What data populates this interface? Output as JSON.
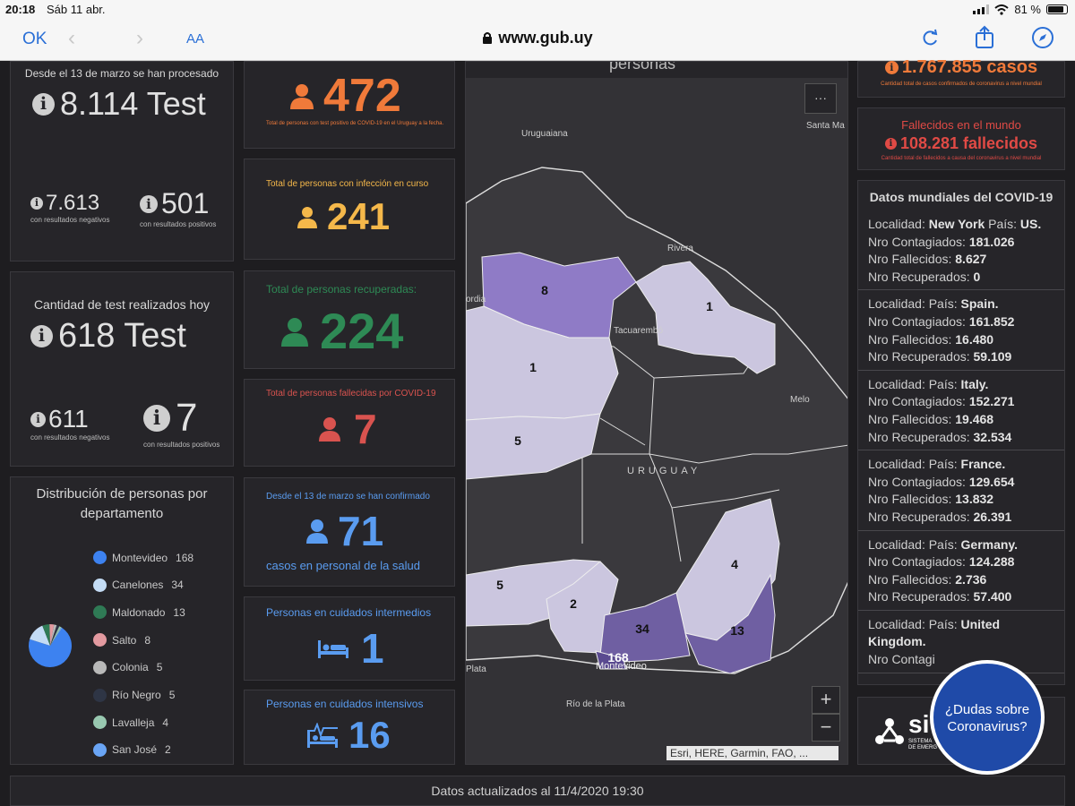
{
  "status_bar": {
    "time": "20:18",
    "date": "Sáb 11 abr.",
    "battery": "81 %"
  },
  "browser": {
    "ok_label": "OK",
    "text_size_label": "AA",
    "url": "www.gub.uy"
  },
  "tests_total": {
    "header": "Desde el 13 de marzo se han procesado",
    "value": "8.114 Test",
    "negatives_value": "7.613",
    "negatives_label": "con resultados negativos",
    "positives_value": "501",
    "positives_label": "con resultados positivos"
  },
  "tests_today": {
    "header": "Cantidad de test realizados hoy",
    "value": "618 Test",
    "negatives_value": "611",
    "negatives_label": "con resultados negativos",
    "positives_value": "7",
    "positives_label": "con resultados positivos"
  },
  "distribution": {
    "title": "Distribución de personas por departamento",
    "items": [
      {
        "name": "Montevideo",
        "value": "168",
        "color": "#3d82f0"
      },
      {
        "name": "Canelones",
        "value": "34",
        "color": "#c4dcf5"
      },
      {
        "name": "Maldonado",
        "value": "13",
        "color": "#2f7a55"
      },
      {
        "name": "Salto",
        "value": "8",
        "color": "#e39aa0"
      },
      {
        "name": "Colonia",
        "value": "5",
        "color": "#b9b9b9"
      },
      {
        "name": "Río Negro",
        "value": "5",
        "color": "#2e3545"
      },
      {
        "name": "Lavalleja",
        "value": "4",
        "color": "#98c8b0"
      },
      {
        "name": "San José",
        "value": "2",
        "color": "#6aa5f5"
      }
    ]
  },
  "kpi": {
    "positives": {
      "value": "472",
      "label": "Total de personas con test positivo de COVID-19 en el Uruguay a la fecha.",
      "color": "#f07a3a"
    },
    "active": {
      "label": "Total de personas con infección en curso",
      "value": "241",
      "color": "#f5b84a"
    },
    "recovered": {
      "label": "Total de personas recuperadas:",
      "value": "224",
      "color": "#2e8a55"
    },
    "deceased": {
      "label": "Total de personas fallecidas por COVID-19",
      "value": "7",
      "color": "#d9534f"
    },
    "health_staff": {
      "label": "Desde el 13 de marzo se han confirmado",
      "value": "71",
      "sublabel": "casos en personal de la salud",
      "color": "#5a9cf0"
    },
    "intermediate_care": {
      "label": "Personas en cuidados intermedios",
      "value": "1",
      "color": "#5a9cf0"
    },
    "intensive_care": {
      "label": "Personas en cuidados intensivos",
      "value": "16",
      "color": "#5a9cf0"
    }
  },
  "map": {
    "title_partial": "personas",
    "places": [
      "Uruguaiana",
      "Santa Ma",
      "Rivera",
      "Tacuarembó",
      "Melo",
      "URUGUAY",
      "Montevideo",
      "Plata",
      "Río de la Plata",
      "ordia"
    ],
    "region_counts": [
      "8",
      "1",
      "1",
      "5",
      "5",
      "2",
      "34",
      "4",
      "13",
      "168"
    ],
    "attribution": "Esri, HERE, Garmin, FAO, ...",
    "zoom_in": "+",
    "zoom_out": "−",
    "menu": "···"
  },
  "world": {
    "cases_value": "1.767.855 casos",
    "cases_label": "Cantidad total de casos confirmados de coronavirus a nivel mundial",
    "deaths_title": "Fallecidos en el mundo",
    "deaths_value": "108.281 fallecidos",
    "deaths_label": "Cantidad total de fallecidos a causa del coronavirus a nivel mundial",
    "list_title": "Datos mundiales del COVID-19",
    "entries": [
      {
        "loc": "Localidad:",
        "loc_val": "New York",
        "pais": "País:",
        "pais_val": "US.",
        "cont": "Nro Contagiados:",
        "cont_val": "181.026",
        "fall": "Nro Fallecidos:",
        "fall_val": "8.627",
        "rec": "Nro Recuperados:",
        "rec_val": "0"
      },
      {
        "loc": "Localidad:",
        "loc_val": "",
        "pais": "País:",
        "pais_val": "Spain.",
        "cont": "Nro Contagiados:",
        "cont_val": "161.852",
        "fall": "Nro Fallecidos:",
        "fall_val": "16.480",
        "rec": "Nro Recuperados:",
        "rec_val": "59.109"
      },
      {
        "loc": "Localidad:",
        "loc_val": "",
        "pais": "País:",
        "pais_val": "Italy.",
        "cont": "Nro Contagiados:",
        "cont_val": "152.271",
        "fall": "Nro Fallecidos:",
        "fall_val": "19.468",
        "rec": "Nro Recuperados:",
        "rec_val": "32.534"
      },
      {
        "loc": "Localidad:",
        "loc_val": "",
        "pais": "País:",
        "pais_val": "France.",
        "cont": "Nro Contagiados:",
        "cont_val": "129.654",
        "fall": "Nro Fallecidos:",
        "fall_val": "13.832",
        "rec": "Nro Recuperados:",
        "rec_val": "26.391"
      },
      {
        "loc": "Localidad:",
        "loc_val": "",
        "pais": "País:",
        "pais_val": "Germany.",
        "cont": "Nro Contagiados:",
        "cont_val": "124.288",
        "fall": "Nro Fallecidos:",
        "fall_val": "2.736",
        "rec": "Nro Recuperados:",
        "rec_val": "57.400"
      },
      {
        "loc": "Localidad:",
        "loc_val": "",
        "pais": "País:",
        "pais_val": "United Kingdom.",
        "cont": "Nro Contagi",
        "cont_val": "",
        "fall": "",
        "fall_val": "",
        "rec": "",
        "rec_val": ""
      }
    ]
  },
  "sinae": {
    "logo_text": "si",
    "sub1": "SISTEMA",
    "sub2": "DE EMERG"
  },
  "help_bubble": {
    "line1": "¿Dudas sobre",
    "line2": "Coronavirus?"
  },
  "footer": {
    "text": "Datos actualizados al 11/4/2020 19:30"
  }
}
